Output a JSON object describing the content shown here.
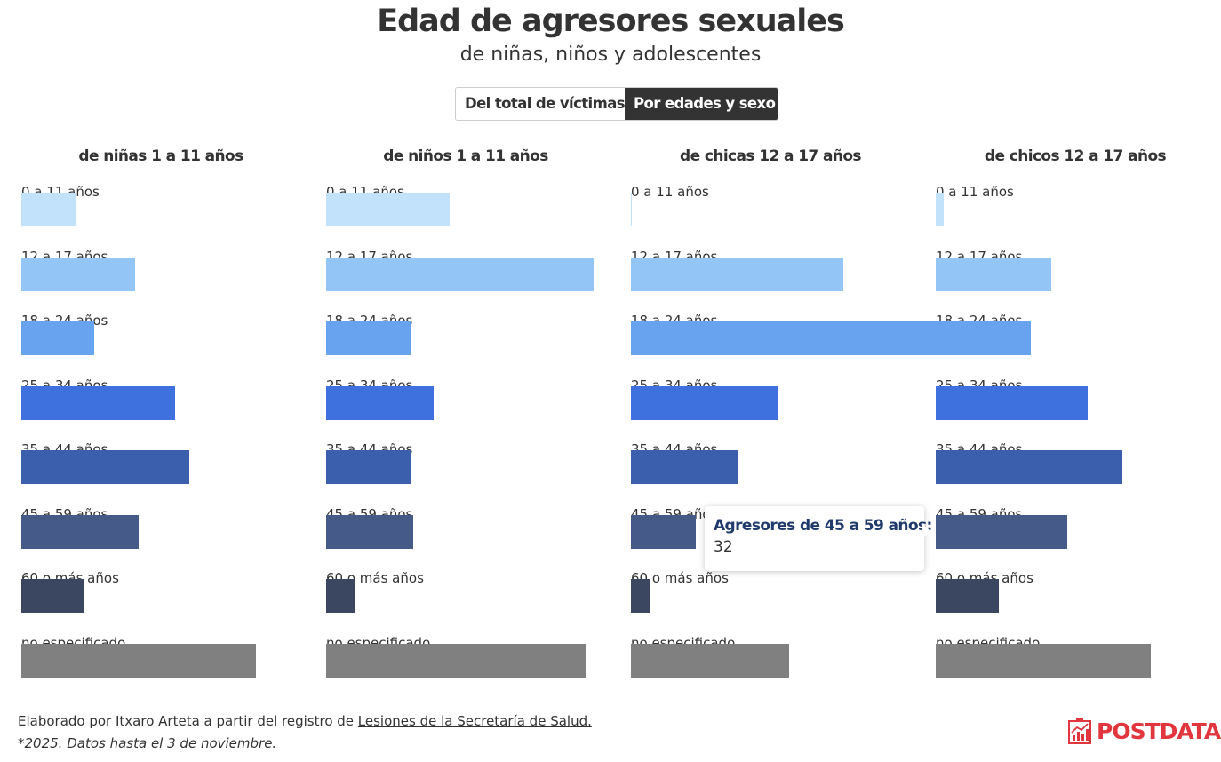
{
  "title": "Edad de agresores sexuales",
  "subtitle": "de niñas, niños y adolescentes",
  "toggle": {
    "options": [
      "Del total de víctimas",
      "Por edades y sexo"
    ],
    "active": "Por edades y sexo"
  },
  "colors": {
    "0 a 11 años": "#c2e2fc",
    "12 a 17 años": "#93c6f7",
    "18 a 24 años": "#67a3ee",
    "25 a 34 años": "#3f71de",
    "35 a 44 años": "#3b5fad",
    "45 a 59 años": "#465a8a",
    "60 o más años": "#3b4760",
    "no especificado": "#808080"
  },
  "chart_data": [
    {
      "type": "bar",
      "title": "de niñas 1 a 11 años",
      "categories": [
        "0 a 11 años",
        "12 a 17 años",
        "18 a 24 años",
        "25 a 34 años",
        "35 a 44 años",
        "45 a 59 años",
        "60 o más años",
        "no especificado"
      ],
      "values": [
        27,
        56,
        36,
        76,
        83,
        58,
        31,
        116
      ]
    },
    {
      "type": "bar",
      "title": "de niños 1 a 11 años",
      "categories": [
        "0 a 11 años",
        "12 a 17 años",
        "18 a 24 años",
        "25 a 34 años",
        "35 a 44 años",
        "45 a 59 años",
        "60 o más años",
        "no especificado"
      ],
      "values": [
        61,
        132,
        42,
        53,
        42,
        43,
        14,
        128
      ]
    },
    {
      "type": "bar",
      "title": "de chicas 12 a 17 años",
      "categories": [
        "0 a 11 años",
        "12 a 17 años",
        "18 a 24 años",
        "25 a 34 años",
        "35 a 44 años",
        "45 a 59 años",
        "60 o más años",
        "no especificado"
      ],
      "values": [
        0,
        105,
        187,
        73,
        53,
        32,
        9,
        78
      ]
    },
    {
      "type": "bar",
      "title": "de chicos 12 a 17 años",
      "categories": [
        "0 a 11 años",
        "12 a 17 años",
        "18 a 24 años",
        "25 a 34 años",
        "35 a 44 años",
        "45 a 59 años",
        "60 o más años",
        "no especificado"
      ],
      "values": [
        4,
        57,
        47,
        75,
        92,
        65,
        31,
        106
      ]
    }
  ],
  "tooltip": {
    "title": "Agresores de 45 a 59 años:",
    "value": "32"
  },
  "footer": {
    "prefix": "Elaborado por Itxaro Arteta a partir del registro de ",
    "link": "Lesiones de la Secretaría de Salud.",
    "note": "*2025. Datos hasta el 3 de noviembre."
  },
  "logo": {
    "text": "POSTDATA",
    "color": "#e2363f"
  }
}
